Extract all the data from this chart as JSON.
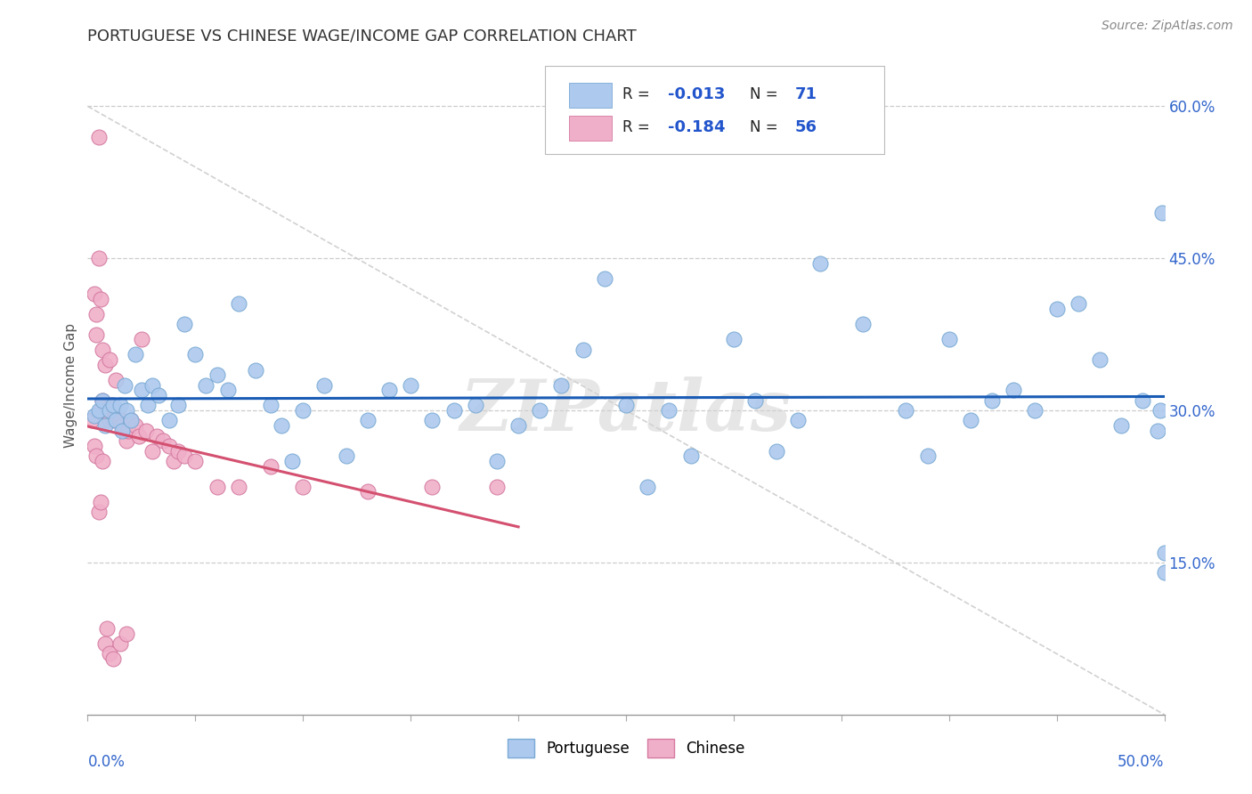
{
  "title": "PORTUGUESE VS CHINESE WAGE/INCOME GAP CORRELATION CHART",
  "source": "Source: ZipAtlas.com",
  "ylabel": "Wage/Income Gap",
  "xmin": 0.0,
  "xmax": 0.5,
  "ymin": 0.0,
  "ymax": 0.65,
  "yticks": [
    0.15,
    0.3,
    0.45,
    0.6
  ],
  "ytick_labels": [
    "15.0%",
    "30.0%",
    "45.0%",
    "60.0%"
  ],
  "portuguese_color": "#adc9ee",
  "chinese_color": "#f0afc8",
  "portuguese_edge": "#7aaad4",
  "chinese_edge": "#d47aa0",
  "trend_portuguese_color": "#1a5cb5",
  "trend_chinese_color": "#d45070",
  "watermark": "ZIPatlas",
  "portuguese_x": [
    0.003,
    0.005,
    0.007,
    0.008,
    0.01,
    0.012,
    0.013,
    0.015,
    0.016,
    0.017,
    0.018,
    0.02,
    0.022,
    0.025,
    0.028,
    0.03,
    0.033,
    0.038,
    0.042,
    0.045,
    0.05,
    0.055,
    0.06,
    0.065,
    0.07,
    0.078,
    0.085,
    0.09,
    0.095,
    0.1,
    0.11,
    0.12,
    0.13,
    0.14,
    0.15,
    0.16,
    0.17,
    0.18,
    0.19,
    0.2,
    0.21,
    0.22,
    0.23,
    0.24,
    0.25,
    0.26,
    0.27,
    0.28,
    0.3,
    0.31,
    0.32,
    0.33,
    0.34,
    0.36,
    0.38,
    0.39,
    0.4,
    0.41,
    0.42,
    0.43,
    0.44,
    0.45,
    0.46,
    0.47,
    0.48,
    0.49,
    0.497,
    0.498,
    0.499,
    0.5,
    0.5
  ],
  "portuguese_y": [
    0.295,
    0.3,
    0.31,
    0.285,
    0.3,
    0.305,
    0.29,
    0.305,
    0.28,
    0.325,
    0.3,
    0.29,
    0.355,
    0.32,
    0.305,
    0.325,
    0.315,
    0.29,
    0.305,
    0.385,
    0.355,
    0.325,
    0.335,
    0.32,
    0.405,
    0.34,
    0.305,
    0.285,
    0.25,
    0.3,
    0.325,
    0.255,
    0.29,
    0.32,
    0.325,
    0.29,
    0.3,
    0.305,
    0.25,
    0.285,
    0.3,
    0.325,
    0.36,
    0.43,
    0.305,
    0.225,
    0.3,
    0.255,
    0.37,
    0.31,
    0.26,
    0.29,
    0.445,
    0.385,
    0.3,
    0.255,
    0.37,
    0.29,
    0.31,
    0.32,
    0.3,
    0.4,
    0.405,
    0.35,
    0.285,
    0.31,
    0.28,
    0.3,
    0.495,
    0.14,
    0.16
  ],
  "chinese_x": [
    0.002,
    0.003,
    0.004,
    0.004,
    0.005,
    0.005,
    0.006,
    0.006,
    0.007,
    0.007,
    0.008,
    0.008,
    0.009,
    0.01,
    0.01,
    0.011,
    0.012,
    0.013,
    0.013,
    0.014,
    0.015,
    0.016,
    0.017,
    0.018,
    0.019,
    0.02,
    0.022,
    0.024,
    0.025,
    0.027,
    0.03,
    0.032,
    0.035,
    0.038,
    0.04,
    0.042,
    0.045,
    0.05,
    0.06,
    0.07,
    0.085,
    0.1,
    0.13,
    0.16,
    0.19,
    0.003,
    0.004,
    0.005,
    0.006,
    0.007,
    0.008,
    0.009,
    0.01,
    0.012,
    0.015,
    0.018
  ],
  "chinese_y": [
    0.29,
    0.415,
    0.395,
    0.375,
    0.57,
    0.45,
    0.41,
    0.3,
    0.36,
    0.31,
    0.29,
    0.345,
    0.3,
    0.29,
    0.35,
    0.305,
    0.29,
    0.295,
    0.33,
    0.3,
    0.29,
    0.285,
    0.28,
    0.27,
    0.28,
    0.29,
    0.285,
    0.275,
    0.37,
    0.28,
    0.26,
    0.275,
    0.27,
    0.265,
    0.25,
    0.26,
    0.255,
    0.25,
    0.225,
    0.225,
    0.245,
    0.225,
    0.22,
    0.225,
    0.225,
    0.265,
    0.255,
    0.2,
    0.21,
    0.25,
    0.07,
    0.085,
    0.06,
    0.055,
    0.07,
    0.08
  ]
}
